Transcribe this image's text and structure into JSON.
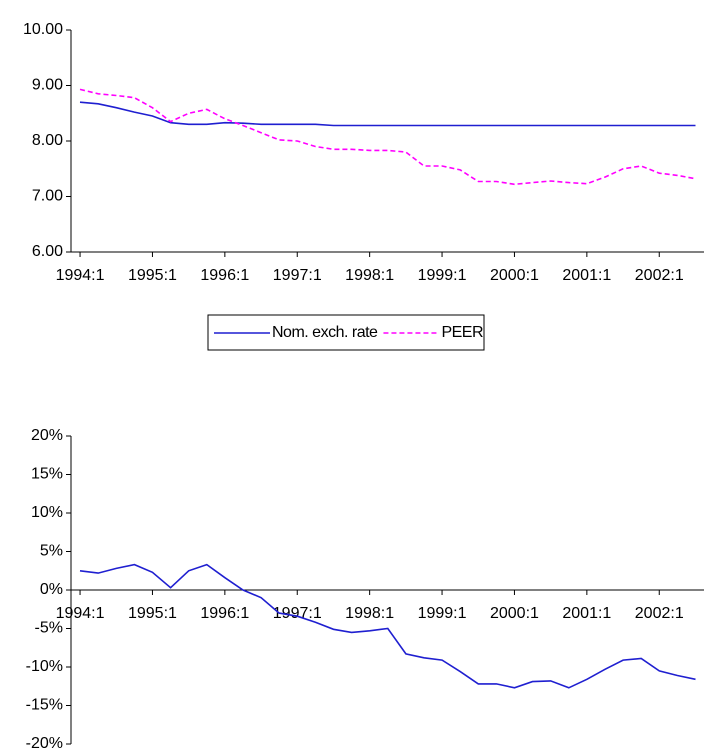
{
  "chart_data": [
    {
      "type": "line",
      "categories": [
        "1994:1",
        null,
        null,
        null,
        "1995:1",
        null,
        null,
        null,
        "1996:1",
        null,
        null,
        null,
        "1997:1",
        null,
        null,
        null,
        "1998:1",
        null,
        null,
        null,
        "1999:1",
        null,
        null,
        null,
        "2000:1",
        null,
        null,
        null,
        "2001:1",
        null,
        null,
        null,
        "2002:1",
        null,
        null
      ],
      "series": [
        {
          "name": "Nom. exch. rate",
          "color": "#1f1fd0",
          "dash": false,
          "values": [
            8.7,
            8.67,
            8.6,
            8.52,
            8.45,
            8.33,
            8.3,
            8.3,
            8.33,
            8.32,
            8.3,
            8.3,
            8.3,
            8.3,
            8.28,
            8.28,
            8.28,
            8.28,
            8.28,
            8.28,
            8.28,
            8.28,
            8.28,
            8.28,
            8.28,
            8.28,
            8.28,
            8.28,
            8.28,
            8.28,
            8.28,
            8.28,
            8.28,
            8.28,
            8.28
          ]
        },
        {
          "name": "PEER",
          "color": "#ff00ff",
          "dash": true,
          "values": [
            8.93,
            8.85,
            8.82,
            8.78,
            8.6,
            8.35,
            8.5,
            8.57,
            8.4,
            8.28,
            8.15,
            8.02,
            8.0,
            7.9,
            7.85,
            7.85,
            7.83,
            7.83,
            7.8,
            7.55,
            7.55,
            7.48,
            7.27,
            7.27,
            7.22,
            7.25,
            7.28,
            7.25,
            7.23,
            7.35,
            7.5,
            7.55,
            7.42,
            7.38,
            7.32
          ]
        }
      ],
      "ylim": [
        6,
        10
      ],
      "yticks": [
        {
          "value": 6,
          "label": "6.00"
        },
        {
          "value": 7,
          "label": "7.00"
        },
        {
          "value": 8,
          "label": "8.00"
        },
        {
          "value": 9,
          "label": "9.00"
        },
        {
          "value": 10,
          "label": "10.00"
        }
      ],
      "legend": "bottom"
    },
    {
      "type": "line",
      "categories": [
        "1994:1",
        null,
        null,
        null,
        "1995:1",
        null,
        null,
        null,
        "1996:1",
        null,
        null,
        null,
        "1997:1",
        null,
        null,
        null,
        "1998:1",
        null,
        null,
        null,
        "1999:1",
        null,
        null,
        null,
        "2000:1",
        null,
        null,
        null,
        "2001:1",
        null,
        null,
        null,
        "2002:1",
        null,
        null
      ],
      "series": [
        {
          "color": "#1f1fd0",
          "dash": false,
          "values": [
            2.5,
            2.2,
            2.8,
            3.3,
            2.3,
            0.3,
            2.5,
            3.3,
            1.6,
            0.0,
            -1.0,
            -3.0,
            -3.4,
            -4.2,
            -5.1,
            -5.5,
            -5.3,
            -5.0,
            -8.3,
            -8.8,
            -9.1,
            -10.6,
            -12.2,
            -12.2,
            -12.7,
            -11.9,
            -11.8,
            -12.7,
            -11.6,
            -10.3,
            -9.1,
            -8.9,
            -10.5,
            -11.1,
            -11.6
          ]
        }
      ],
      "ylim": [
        -20,
        20
      ],
      "yticks": [
        {
          "value": -20,
          "label": "-20%"
        },
        {
          "value": -15,
          "label": "-15%"
        },
        {
          "value": -10,
          "label": "-10%"
        },
        {
          "value": -5,
          "label": "-5%"
        },
        {
          "value": 0,
          "label": "0%"
        },
        {
          "value": 5,
          "label": "5%"
        },
        {
          "value": 10,
          "label": "10%"
        },
        {
          "value": 15,
          "label": "15%"
        },
        {
          "value": 20,
          "label": "20%"
        }
      ]
    }
  ]
}
